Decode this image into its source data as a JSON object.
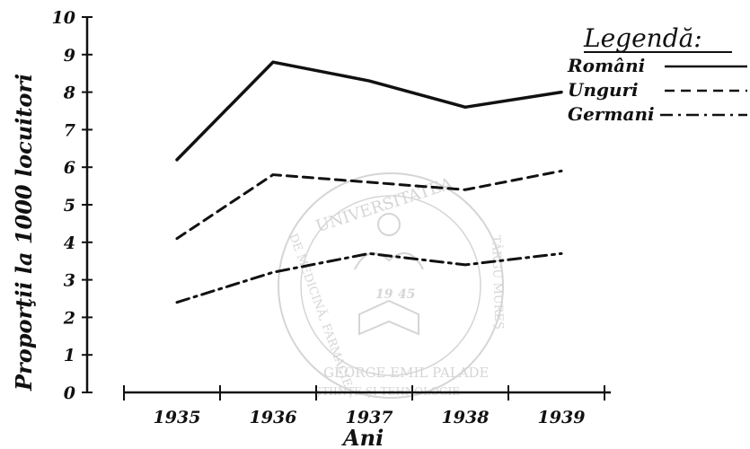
{
  "chart_data": {
    "type": "line",
    "title": "",
    "xlabel": "Ani",
    "ylabel": "Proporţii la 1000 locuitori",
    "categories": [
      "1935",
      "1936",
      "1937",
      "1938",
      "1939"
    ],
    "ylim": [
      0,
      10
    ],
    "yticks": [
      "0",
      "1",
      "2",
      "3",
      "4",
      "5",
      "6",
      "7",
      "8",
      "9",
      "10"
    ],
    "legend_title": "Legendă:",
    "legend_position": "top-right",
    "grid": false,
    "series": [
      {
        "name": "Români",
        "style": "solid",
        "x": [
          0,
          1,
          2,
          3,
          4
        ],
        "values": [
          6.2,
          8.8,
          8.3,
          7.6,
          8.0
        ]
      },
      {
        "name": "Unguri",
        "style": "dashed",
        "x": [
          0,
          1,
          2,
          3,
          4
        ],
        "values": [
          4.1,
          5.8,
          5.6,
          5.4,
          5.9
        ]
      },
      {
        "name": "Germani",
        "style": "dashdot",
        "x": [
          0,
          1,
          2,
          3,
          4
        ],
        "values": [
          2.4,
          3.2,
          3.7,
          3.4,
          3.7
        ]
      }
    ],
    "colors": {
      "ink": "#111111",
      "watermark": "#c8c8c8"
    }
  },
  "watermark": {
    "top_text": "UNIVERSITATEA",
    "left_text": "DE MEDICINĂ, FARMACIE,",
    "right_text": "TÂRGU MUREŞ",
    "bottom_text": "GEORGE EMIL PALADE",
    "bottom_sub": "ŞTIINŢE ŞI TEHNOLOGIE",
    "year_left": "19",
    "year_right": "45"
  }
}
